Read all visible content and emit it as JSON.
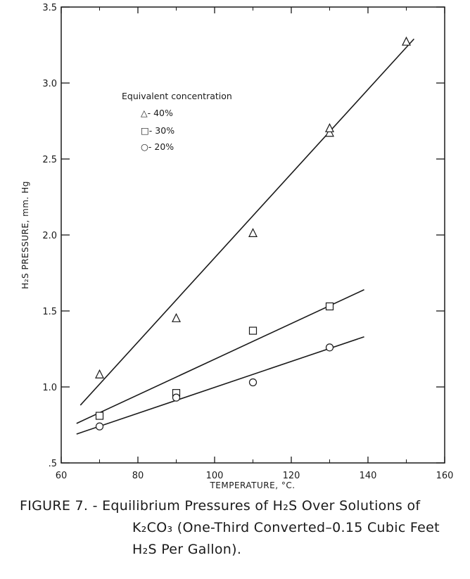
{
  "figure": {
    "caption_line1": "FIGURE 7. - Equilibrium Pressures of H₂S Over Solutions of",
    "caption_line2": "K₂CO₃ (One-Third Converted–0.15 Cubic Feet",
    "caption_line3": "H₂S Per Gallon)."
  },
  "chart_data": {
    "type": "scatter",
    "title": "",
    "xlabel": "TEMPERATURE, °C.",
    "ylabel": "H₂S PRESSURE, mm. Hg",
    "xlim": [
      60,
      160
    ],
    "ylim": [
      0.5,
      3.5
    ],
    "x_ticks": [
      "60",
      "80",
      "100",
      "120",
      "140",
      "160"
    ],
    "y_ticks": [
      ".5",
      "1.0",
      "1.5",
      "2.0",
      "2.5",
      "3.0",
      "3.5"
    ],
    "grid": false,
    "legend_title": "Equivalent concentration",
    "legend_position": "upper-left",
    "series": [
      {
        "name": "40%",
        "marker": "triangle",
        "points": [
          [
            70,
            1.08
          ],
          [
            90,
            1.45
          ],
          [
            110,
            2.01
          ],
          [
            130,
            2.67
          ],
          [
            130,
            2.7
          ],
          [
            150,
            3.27
          ]
        ],
        "fit_line": [
          [
            65,
            0.88
          ],
          [
            152,
            3.29
          ]
        ]
      },
      {
        "name": "30%",
        "marker": "square",
        "points": [
          [
            70,
            0.81
          ],
          [
            90,
            0.96
          ],
          [
            110,
            1.37
          ],
          [
            130,
            1.53
          ]
        ],
        "fit_line": [
          [
            64,
            0.76
          ],
          [
            139,
            1.64
          ]
        ]
      },
      {
        "name": "20%",
        "marker": "circle",
        "points": [
          [
            70,
            0.74
          ],
          [
            90,
            0.93
          ],
          [
            110,
            1.03
          ],
          [
            130,
            1.26
          ]
        ],
        "fit_line": [
          [
            64,
            0.69
          ],
          [
            139,
            1.33
          ]
        ]
      }
    ],
    "legend_entries": [
      "△- 40%",
      "□- 30%",
      "○- 20%"
    ]
  }
}
